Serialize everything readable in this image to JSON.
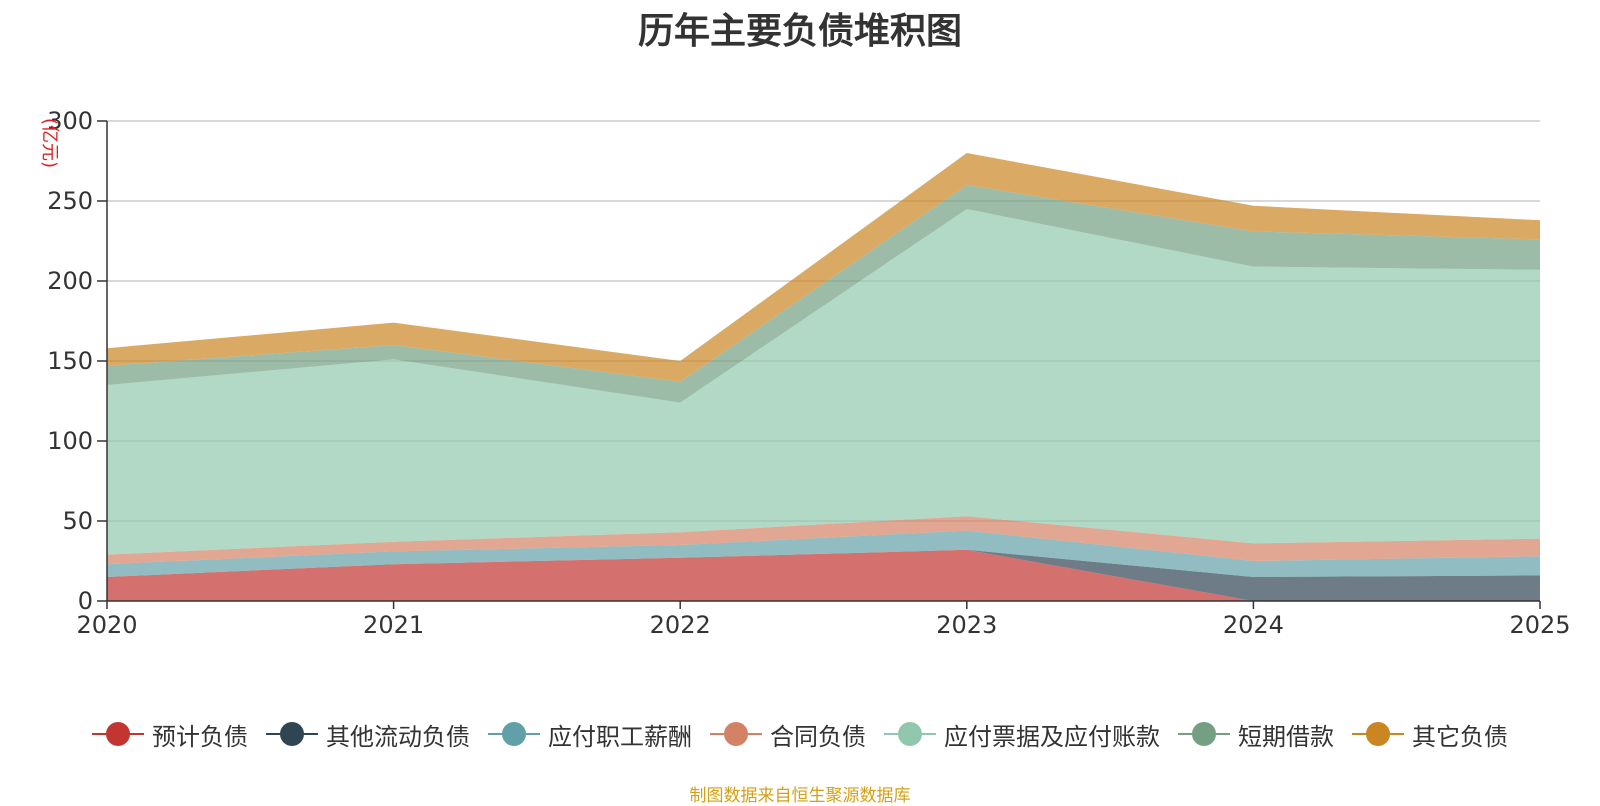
{
  "chart_data": {
    "type": "area",
    "stacked": true,
    "title": "历年主要负债堆积图",
    "unit_label": "(亿元)",
    "categories": [
      "2020",
      "2021",
      "2022",
      "2023",
      "2024",
      "2025"
    ],
    "ylim": [
      0,
      300
    ],
    "yticks": [
      0,
      50,
      100,
      150,
      200,
      250,
      300
    ],
    "grid": true,
    "legend_position": "bottom",
    "series": [
      {
        "name": "预计负债",
        "color": "#c23531",
        "values": [
          15,
          23,
          27,
          32,
          0,
          0
        ]
      },
      {
        "name": "其他流动负债",
        "color": "#2f4554",
        "values": [
          0,
          0,
          0,
          0,
          15,
          16
        ]
      },
      {
        "name": "应付职工薪酬",
        "color": "#61a0a8",
        "values": [
          8,
          8,
          8,
          12,
          10,
          12
        ]
      },
      {
        "name": "合同负债",
        "color": "#d48265",
        "values": [
          6,
          6,
          8,
          9,
          11,
          11
        ]
      },
      {
        "name": "应付票据及应付账款",
        "color": "#91c7ae",
        "values": [
          106,
          114,
          81,
          192,
          173,
          168
        ]
      },
      {
        "name": "短期借款",
        "color": "#749f83",
        "values": [
          12,
          9,
          13,
          15,
          22,
          19
        ]
      },
      {
        "name": "其它负债",
        "color": "#ca8622",
        "values": [
          11,
          14,
          13,
          20,
          16,
          12
        ]
      }
    ]
  },
  "footer": {
    "source": "制图数据来自恒生聚源数据库"
  }
}
